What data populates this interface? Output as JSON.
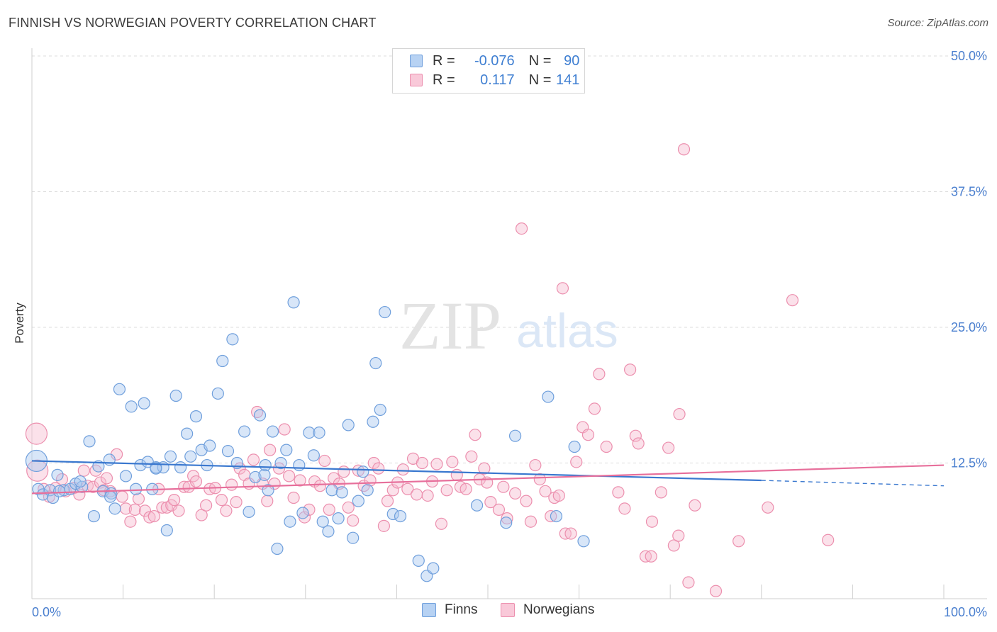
{
  "header": {
    "title": "FINNISH VS NORWEGIAN POVERTY CORRELATION CHART",
    "source": "Source: ZipAtlas.com"
  },
  "watermark": {
    "zip": "ZIP",
    "atlas": "atlas"
  },
  "legend": {
    "finns": {
      "r_label": "R =",
      "r_value": "-0.076",
      "n_label": "N =",
      "n_value": "90"
    },
    "norwegians": {
      "r_label": "R =",
      "r_value": "0.117",
      "n_label": "N =",
      "n_value": "141"
    }
  },
  "bottom_legend": {
    "finns": "Finns",
    "norwegians": "Norwegians"
  },
  "colors": {
    "finns_fill": "#a9c8ef",
    "finns_stroke": "#6f9fdc",
    "finns_line": "#3a78cf",
    "nor_fill": "#f6bcd0",
    "nor_stroke": "#ec8fae",
    "nor_line": "#e76f9b",
    "tick_text": "#4a7fcf",
    "grid": "#dddddd"
  },
  "chart_data": {
    "type": "scatter",
    "title": "FINNISH VS NORWEGIAN POVERTY CORRELATION CHART",
    "xlabel": "",
    "ylabel": "Poverty",
    "xlim": [
      0,
      100
    ],
    "ylim": [
      0,
      50
    ],
    "x_tick_labels": [
      "0.0%",
      "100.0%"
    ],
    "y_ticks": [
      12.5,
      25.0,
      37.5,
      50.0
    ],
    "y_tick_labels": [
      "12.5%",
      "25.0%",
      "37.5%",
      "50.0%"
    ],
    "grid": true,
    "legend_position": "top-center",
    "series": [
      {
        "name": "Finns",
        "r": -0.076,
        "n": 90,
        "trend": {
          "x": [
            0,
            80
          ],
          "y": [
            12.7,
            10.9
          ],
          "dashed_extension": {
            "x": [
              80,
              100
            ],
            "y": [
              10.9,
              10.4
            ]
          }
        },
        "points": [
          [
            0.5,
            12.7,
            1
          ],
          [
            0.7,
            10.1,
            0
          ],
          [
            1.2,
            9.6,
            0
          ],
          [
            2.0,
            10.0,
            0
          ],
          [
            2.3,
            9.3,
            0
          ],
          [
            2.8,
            11.4,
            0
          ],
          [
            3.5,
            10.0,
            0
          ],
          [
            4.2,
            10.1,
            0
          ],
          [
            4.8,
            10.6,
            0
          ],
          [
            5.5,
            10.3,
            0
          ],
          [
            6.3,
            14.5,
            0
          ],
          [
            6.8,
            7.6,
            0
          ],
          [
            7.3,
            12.2,
            0
          ],
          [
            7.8,
            9.9,
            0
          ],
          [
            8.5,
            12.8,
            0
          ],
          [
            8.7,
            9.7,
            0
          ],
          [
            9.1,
            8.3,
            0
          ],
          [
            9.6,
            19.3,
            0
          ],
          [
            10.3,
            11.3,
            0
          ],
          [
            10.9,
            17.7,
            0
          ],
          [
            11.4,
            10.1,
            0
          ],
          [
            11.9,
            12.3,
            0
          ],
          [
            12.3,
            18.0,
            0
          ],
          [
            12.7,
            12.6,
            0
          ],
          [
            13.2,
            10.1,
            0
          ],
          [
            13.6,
            12.1,
            0
          ],
          [
            14.4,
            12.1,
            0
          ],
          [
            14.8,
            6.3,
            0
          ],
          [
            15.2,
            13.1,
            0
          ],
          [
            15.8,
            18.7,
            0
          ],
          [
            16.3,
            12.1,
            0
          ],
          [
            17.0,
            15.2,
            0
          ],
          [
            17.4,
            13.1,
            0
          ],
          [
            18.0,
            16.8,
            0
          ],
          [
            18.6,
            13.7,
            0
          ],
          [
            19.2,
            12.3,
            0
          ],
          [
            19.5,
            14.1,
            0
          ],
          [
            20.4,
            18.9,
            0
          ],
          [
            20.9,
            21.9,
            0
          ],
          [
            21.5,
            13.6,
            0
          ],
          [
            22.0,
            23.9,
            0
          ],
          [
            22.5,
            12.5,
            0
          ],
          [
            23.3,
            15.4,
            0
          ],
          [
            23.8,
            8.0,
            0
          ],
          [
            24.5,
            11.2,
            0
          ],
          [
            25.0,
            16.9,
            0
          ],
          [
            25.5,
            11.4,
            0
          ],
          [
            25.9,
            10.0,
            0
          ],
          [
            26.4,
            15.4,
            0
          ],
          [
            26.9,
            4.6,
            0
          ],
          [
            27.3,
            12.5,
            0
          ],
          [
            27.9,
            13.7,
            0
          ],
          [
            28.3,
            7.1,
            0
          ],
          [
            28.7,
            27.3,
            0
          ],
          [
            29.3,
            12.3,
            0
          ],
          [
            29.7,
            7.9,
            0
          ],
          [
            30.4,
            15.3,
            0
          ],
          [
            30.9,
            13.2,
            0
          ],
          [
            31.5,
            15.3,
            0
          ],
          [
            31.9,
            7.1,
            0
          ],
          [
            32.5,
            6.2,
            0
          ],
          [
            32.9,
            10.0,
            0
          ],
          [
            33.6,
            7.4,
            0
          ],
          [
            34.0,
            9.8,
            0
          ],
          [
            34.7,
            16.0,
            0
          ],
          [
            35.2,
            5.6,
            0
          ],
          [
            35.8,
            9.0,
            0
          ],
          [
            36.3,
            11.7,
            0
          ],
          [
            36.8,
            10.0,
            0
          ],
          [
            37.4,
            16.3,
            0
          ],
          [
            37.7,
            21.7,
            0
          ],
          [
            38.2,
            17.4,
            0
          ],
          [
            38.7,
            26.4,
            0
          ],
          [
            39.6,
            7.8,
            0
          ],
          [
            40.4,
            7.6,
            0
          ],
          [
            42.4,
            3.5,
            0
          ],
          [
            43.3,
            2.1,
            0
          ],
          [
            44.0,
            2.8,
            0
          ],
          [
            48.8,
            8.6,
            0
          ],
          [
            52.0,
            7.0,
            0
          ],
          [
            53.0,
            15.0,
            0
          ],
          [
            56.6,
            18.6,
            0
          ],
          [
            57.5,
            7.6,
            0
          ],
          [
            59.5,
            14.0,
            0
          ],
          [
            60.5,
            5.3,
            0
          ],
          [
            13.6,
            12.0,
            0
          ],
          [
            25.6,
            12.3,
            0
          ],
          [
            5.3,
            10.8,
            0
          ],
          [
            3.0,
            9.9,
            0
          ],
          [
            8.6,
            9.4,
            0
          ]
        ]
      },
      {
        "name": "Norwegians",
        "r": 0.117,
        "n": 141,
        "trend": {
          "x": [
            0,
            100
          ],
          "y": [
            9.7,
            12.3
          ]
        },
        "points": [
          [
            0.5,
            15.2,
            1
          ],
          [
            0.6,
            11.8,
            1
          ],
          [
            1.3,
            10.1,
            0
          ],
          [
            1.9,
            9.4,
            0
          ],
          [
            2.6,
            10.2,
            0
          ],
          [
            3.3,
            11.0,
            0
          ],
          [
            3.7,
            9.9,
            0
          ],
          [
            4.6,
            10.2,
            0
          ],
          [
            5.2,
            9.6,
            0
          ],
          [
            5.7,
            11.8,
            0
          ],
          [
            6.1,
            10.4,
            0
          ],
          [
            6.7,
            10.3,
            0
          ],
          [
            7.0,
            11.8,
            0
          ],
          [
            7.5,
            10.7,
            0
          ],
          [
            7.9,
            10.0,
            0
          ],
          [
            8.2,
            11.1,
            0
          ],
          [
            8.6,
            9.9,
            0
          ],
          [
            9.3,
            13.3,
            0
          ],
          [
            9.9,
            9.4,
            0
          ],
          [
            10.3,
            8.3,
            0
          ],
          [
            10.8,
            7.1,
            0
          ],
          [
            11.3,
            8.2,
            0
          ],
          [
            11.7,
            9.2,
            0
          ],
          [
            12.4,
            8.1,
            0
          ],
          [
            12.9,
            7.5,
            0
          ],
          [
            13.4,
            7.6,
            0
          ],
          [
            13.9,
            10.1,
            0
          ],
          [
            14.3,
            8.4,
            0
          ],
          [
            14.8,
            8.4,
            0
          ],
          [
            15.3,
            8.6,
            0
          ],
          [
            15.6,
            9.1,
            0
          ],
          [
            16.1,
            8.1,
            0
          ],
          [
            16.7,
            10.3,
            0
          ],
          [
            17.2,
            10.3,
            0
          ],
          [
            17.7,
            11.3,
            0
          ],
          [
            18.0,
            10.8,
            0
          ],
          [
            18.6,
            7.7,
            0
          ],
          [
            19.1,
            8.6,
            0
          ],
          [
            19.5,
            10.1,
            0
          ],
          [
            20.1,
            10.2,
            0
          ],
          [
            20.8,
            9.1,
            0
          ],
          [
            21.3,
            8.1,
            0
          ],
          [
            21.9,
            10.5,
            0
          ],
          [
            22.4,
            8.9,
            0
          ],
          [
            22.8,
            12.0,
            0
          ],
          [
            23.3,
            11.4,
            0
          ],
          [
            23.8,
            10.6,
            0
          ],
          [
            24.3,
            12.8,
            0
          ],
          [
            24.7,
            17.2,
            0
          ],
          [
            25.3,
            10.6,
            0
          ],
          [
            25.8,
            9.0,
            0
          ],
          [
            26.1,
            13.7,
            0
          ],
          [
            26.6,
            10.6,
            0
          ],
          [
            27.1,
            12.0,
            0
          ],
          [
            27.7,
            15.6,
            0
          ],
          [
            28.2,
            11.3,
            0
          ],
          [
            28.7,
            9.3,
            0
          ],
          [
            29.4,
            10.9,
            0
          ],
          [
            29.9,
            7.5,
            0
          ],
          [
            30.4,
            8.2,
            0
          ],
          [
            31.0,
            10.8,
            0
          ],
          [
            31.6,
            10.4,
            0
          ],
          [
            32.1,
            12.7,
            0
          ],
          [
            32.6,
            8.2,
            0
          ],
          [
            33.1,
            11.1,
            0
          ],
          [
            33.7,
            10.6,
            0
          ],
          [
            34.2,
            11.7,
            0
          ],
          [
            34.7,
            8.4,
            0
          ],
          [
            35.2,
            7.2,
            0
          ],
          [
            35.8,
            11.8,
            0
          ],
          [
            36.4,
            10.4,
            0
          ],
          [
            37.1,
            10.9,
            0
          ],
          [
            37.5,
            12.5,
            0
          ],
          [
            38.0,
            12.0,
            0
          ],
          [
            38.6,
            6.7,
            0
          ],
          [
            39.0,
            9.0,
            0
          ],
          [
            39.6,
            10.0,
            0
          ],
          [
            40.1,
            10.7,
            0
          ],
          [
            40.7,
            11.9,
            0
          ],
          [
            41.2,
            10.1,
            0
          ],
          [
            41.8,
            12.9,
            0
          ],
          [
            42.2,
            9.6,
            0
          ],
          [
            42.8,
            12.5,
            0
          ],
          [
            43.4,
            9.5,
            0
          ],
          [
            43.9,
            10.8,
            0
          ],
          [
            44.4,
            12.4,
            0
          ],
          [
            44.9,
            6.9,
            0
          ],
          [
            45.5,
            10.0,
            0
          ],
          [
            46.1,
            12.6,
            0
          ],
          [
            46.6,
            11.4,
            0
          ],
          [
            47.0,
            10.3,
            0
          ],
          [
            47.6,
            10.1,
            0
          ],
          [
            48.2,
            13.1,
            0
          ],
          [
            48.6,
            15.1,
            0
          ],
          [
            49.1,
            11.0,
            0
          ],
          [
            49.6,
            12.0,
            0
          ],
          [
            49.9,
            10.7,
            0
          ],
          [
            50.3,
            8.9,
            0
          ],
          [
            51.2,
            8.2,
            0
          ],
          [
            51.7,
            10.3,
            0
          ],
          [
            52.1,
            7.4,
            0
          ],
          [
            53.0,
            9.7,
            0
          ],
          [
            53.7,
            34.1,
            0
          ],
          [
            54.2,
            9.0,
            0
          ],
          [
            54.7,
            7.1,
            0
          ],
          [
            55.2,
            12.3,
            0
          ],
          [
            55.7,
            11.0,
            0
          ],
          [
            56.3,
            9.9,
            0
          ],
          [
            56.9,
            7.6,
            0
          ],
          [
            57.3,
            9.3,
            0
          ],
          [
            57.8,
            9.5,
            0
          ],
          [
            58.5,
            6.0,
            0
          ],
          [
            59.1,
            6.0,
            0
          ],
          [
            59.7,
            12.6,
            0
          ],
          [
            60.4,
            15.8,
            0
          ],
          [
            61.0,
            15.1,
            0
          ],
          [
            61.7,
            17.5,
            0
          ],
          [
            62.2,
            20.7,
            0
          ],
          [
            63.0,
            14.0,
            0
          ],
          [
            64.3,
            9.8,
            0
          ],
          [
            65.0,
            8.3,
            0
          ],
          [
            65.6,
            21.1,
            0
          ],
          [
            66.2,
            15.0,
            0
          ],
          [
            66.5,
            14.3,
            0
          ],
          [
            67.3,
            3.9,
            0
          ],
          [
            67.9,
            3.9,
            0
          ],
          [
            68.0,
            7.1,
            0
          ],
          [
            69.0,
            9.8,
            0
          ],
          [
            69.8,
            13.9,
            0
          ],
          [
            70.4,
            4.9,
            0
          ],
          [
            70.9,
            5.8,
            0
          ],
          [
            71.5,
            41.4,
            0
          ],
          [
            72.0,
            1.5,
            0
          ],
          [
            72.7,
            8.6,
            0
          ],
          [
            75.0,
            0.7,
            0
          ],
          [
            77.5,
            5.3,
            0
          ],
          [
            80.7,
            8.4,
            0
          ],
          [
            83.4,
            27.5,
            0
          ],
          [
            87.3,
            5.4,
            0
          ],
          [
            71.0,
            17.0,
            0
          ],
          [
            58.2,
            28.6,
            0
          ]
        ]
      }
    ]
  }
}
